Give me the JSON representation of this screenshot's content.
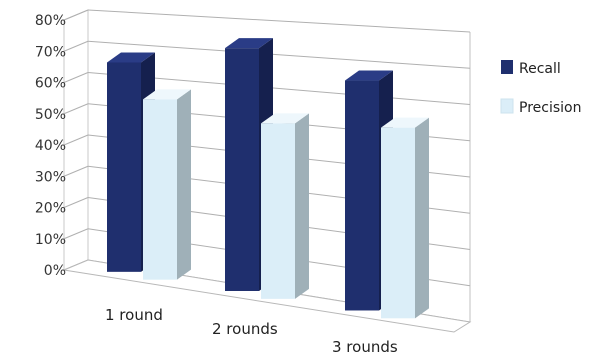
{
  "chart_data": {
    "type": "bar",
    "subtype": "3d-clustered-column",
    "categories": [
      "1 round",
      "2 rounds",
      "3 rounds"
    ],
    "series": [
      {
        "name": "Recall",
        "values": [
          66,
          73,
          66
        ],
        "color": "#1f2f6e"
      },
      {
        "name": "Precision",
        "values": [
          56,
          52,
          54
        ],
        "color": "#dbeef8"
      }
    ],
    "y_ticks": [
      "0%",
      "10%",
      "20%",
      "30%",
      "40%",
      "50%",
      "60%",
      "70%",
      "80%"
    ],
    "ylim": [
      0,
      80
    ],
    "grid": true,
    "legend_position": "right"
  }
}
